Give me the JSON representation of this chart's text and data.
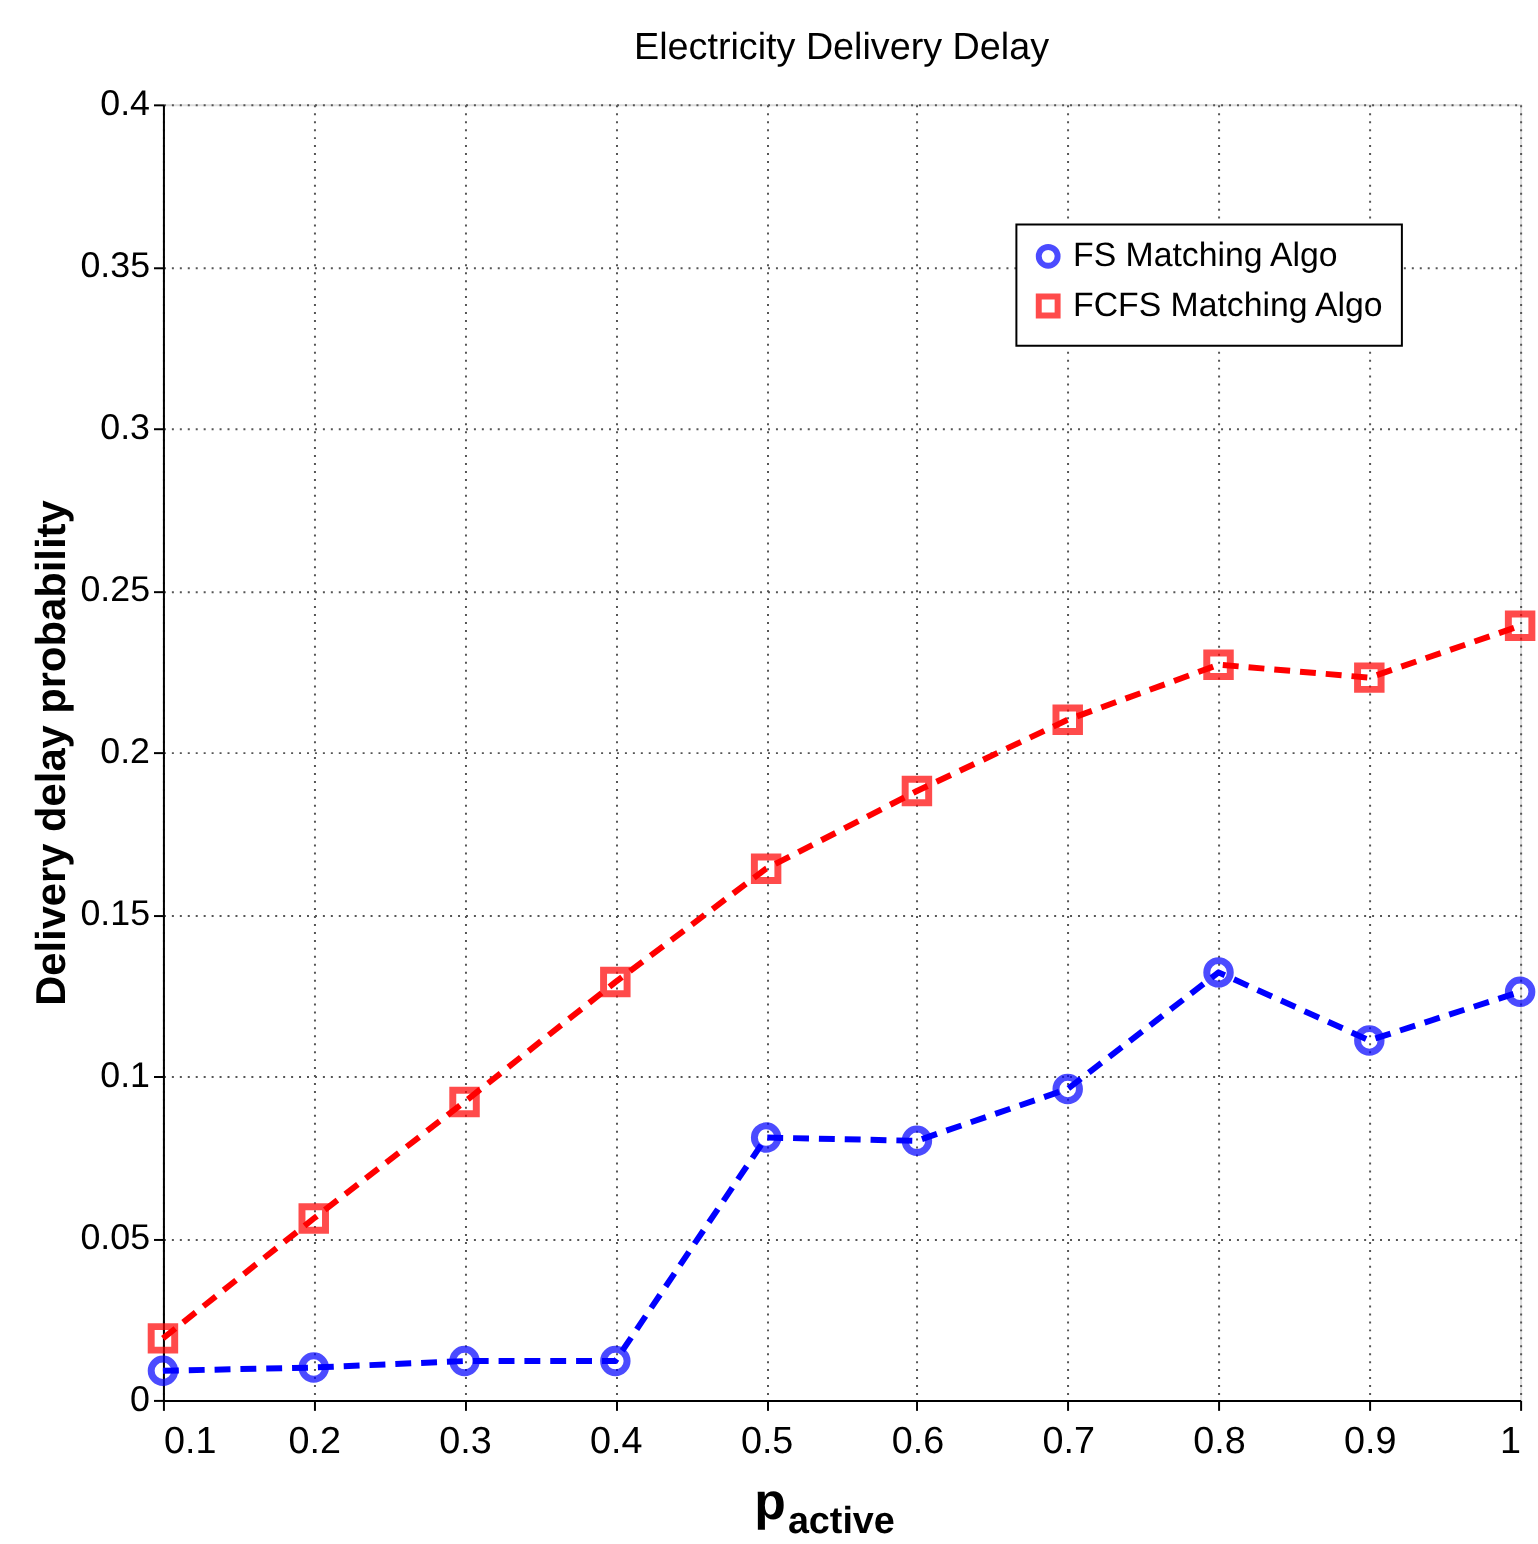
{
  "chart_data": {
    "type": "line",
    "title": "Electricity Delivery Delay",
    "xlabel": "p$_{active}$",
    "ylabel": "Delivery delay probability",
    "x": [
      0.1,
      0.2,
      0.3,
      0.4,
      0.5,
      0.6,
      0.7,
      0.8,
      0.9,
      1
    ],
    "series": [
      {
        "name": "FS Matching Algo",
        "color": "#0000ff",
        "marker": "circle",
        "values": [
          0.009,
          0.01,
          0.012,
          0.012,
          0.081,
          0.08,
          0.096,
          0.132,
          0.111,
          0.126
        ]
      },
      {
        "name": "FCFS Matching Algo",
        "color": "#ff0000",
        "marker": "square",
        "values": [
          0.019,
          0.056,
          0.092,
          0.129,
          0.164,
          0.188,
          0.21,
          0.227,
          0.223,
          0.239
        ]
      }
    ],
    "xlim": [
      0.1,
      1
    ],
    "xticks": [
      0.1,
      0.2,
      0.3,
      0.4,
      0.5,
      0.6,
      0.7,
      0.8,
      0.9,
      1
    ],
    "ylim": [
      0,
      0.4
    ],
    "yticks": [
      0,
      0.05,
      0.1,
      0.15,
      0.2,
      0.25,
      0.3,
      0.35,
      0.4
    ],
    "grid": true,
    "legend": "top right",
    "line_style": "dashed"
  }
}
